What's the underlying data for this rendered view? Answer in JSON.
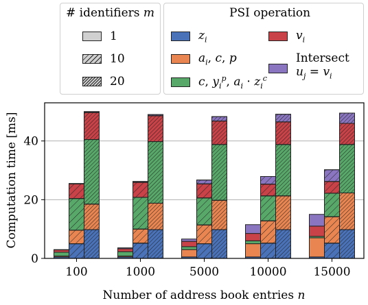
{
  "chart_data": {
    "type": "bar",
    "title": "",
    "xlabel": "Number of address book entries n",
    "ylabel": "Computation time [ms]",
    "ylim": [
      0,
      53
    ],
    "yticks": [
      0,
      20,
      40
    ],
    "grid": "horizontal",
    "categories": [
      "100",
      "1000",
      "5000",
      "10000",
      "15000"
    ],
    "bar_groups": [
      "1",
      "10",
      "20"
    ],
    "legend_identifiers": {
      "title": "# identifiers m",
      "entries": [
        "1",
        "10",
        "20"
      ]
    },
    "legend_operations": {
      "title": "PSI operation",
      "entries": [
        "z_i",
        "a_i, c, p",
        "c, y_i^p, a_i · z_i^c",
        "v_i",
        "Intersect u_j = v_i"
      ]
    },
    "colors": {
      "z_i": "#4a72b8",
      "a_i, c, p": "#e98550",
      "c, y_i^p, a_i · z_i^c": "#58a869",
      "v_i": "#c84248",
      "Intersect u_j = v_i": "#8a76c0"
    },
    "stack_order": [
      "z_i",
      "a_i, c, p",
      "c, y_i^p, a_i · z_i^c",
      "v_i",
      "Intersect u_j = v_i"
    ],
    "series": [
      {
        "name": "z_i",
        "values": [
          [
            0.5,
            5.0,
            9.8
          ],
          [
            0.5,
            5.2,
            9.8
          ],
          [
            0.5,
            5.0,
            9.8
          ],
          [
            0.5,
            5.2,
            9.8
          ],
          [
            0.5,
            5.2,
            9.8
          ]
        ]
      },
      {
        "name": "a_i, c, p",
        "values": [
          [
            0.3,
            4.6,
            8.7
          ],
          [
            0.3,
            4.8,
            9.0
          ],
          [
            2.5,
            6.4,
            10.0
          ],
          [
            4.5,
            7.6,
            11.5
          ],
          [
            6.5,
            9.0,
            12.5
          ]
        ]
      },
      {
        "name": "c, y_i^p, a_i · z_i^c",
        "values": [
          [
            1.3,
            10.8,
            22.0
          ],
          [
            1.5,
            10.8,
            21.0
          ],
          [
            1.0,
            9.2,
            19.0
          ],
          [
            1.0,
            8.5,
            17.5
          ],
          [
            0.5,
            8.0,
            16.5
          ]
        ]
      },
      {
        "name": "v_i",
        "values": [
          [
            0.8,
            5.0,
            9.2
          ],
          [
            1.0,
            5.1,
            8.8
          ],
          [
            1.8,
            4.8,
            8.0
          ],
          [
            2.5,
            4.0,
            7.7
          ],
          [
            3.5,
            4.0,
            7.2
          ]
        ]
      },
      {
        "name": "Intersect u_j = v_i",
        "values": [
          [
            0.1,
            0.1,
            0.3
          ],
          [
            0.3,
            0.3,
            0.4
          ],
          [
            0.8,
            1.3,
            1.5
          ],
          [
            3.0,
            2.6,
            2.6
          ],
          [
            4.0,
            4.0,
            3.5
          ]
        ]
      }
    ]
  }
}
